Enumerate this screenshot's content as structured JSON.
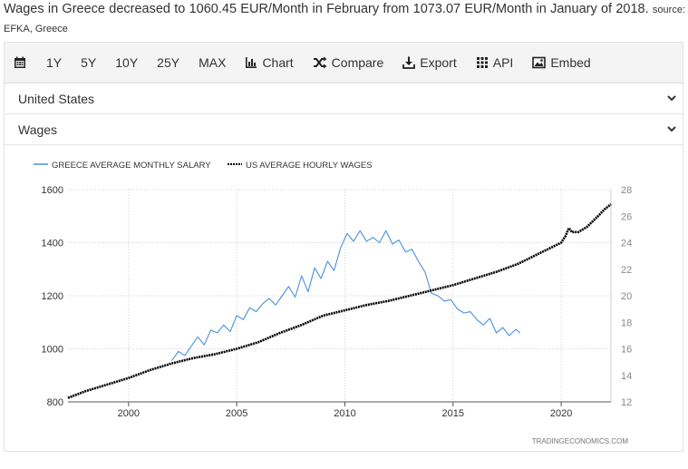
{
  "headline": {
    "text": "Wages in Greece decreased to 1060.45 EUR/Month in February from 1073.07 EUR/Month in January of 2018.",
    "source_prefix": "source:",
    "source_name": "EFKA, Greece"
  },
  "toolbar": {
    "items": [
      {
        "label": "",
        "icon": "calendar-icon"
      },
      {
        "label": "1Y"
      },
      {
        "label": "5Y"
      },
      {
        "label": "10Y"
      },
      {
        "label": "25Y"
      },
      {
        "label": "MAX"
      },
      {
        "label": "Chart",
        "icon": "bar-chart-icon"
      },
      {
        "label": "Compare",
        "icon": "shuffle-icon"
      },
      {
        "label": "Export",
        "icon": "download-icon"
      },
      {
        "label": "API",
        "icon": "grid-icon"
      },
      {
        "label": "Embed",
        "icon": "image-icon"
      }
    ]
  },
  "selectors": {
    "country": "United States",
    "indicator": "Wages"
  },
  "watermark": "TRADINGECONOMICS.COM",
  "chart_data": {
    "type": "line",
    "grid": true,
    "legend_placement": "top-left",
    "x_ticks": [
      2000,
      2005,
      2010,
      2015,
      2020
    ],
    "xlim": [
      1997.2,
      2022.3
    ],
    "y_left": {
      "ticks": [
        800,
        1000,
        1200,
        1400,
        1600
      ],
      "lim": [
        800,
        1600
      ]
    },
    "y_right": {
      "ticks": [
        12,
        14,
        16,
        18,
        20,
        22,
        24,
        26,
        28
      ],
      "lim": [
        12,
        28
      ]
    },
    "series": [
      {
        "name": "GREECE AVERAGE MONTHLY SALARY",
        "axis": "left",
        "color": "#4a90d9",
        "style": "solid",
        "x": [
          2002.0,
          2002.3,
          2002.6,
          2002.9,
          2003.2,
          2003.5,
          2003.8,
          2004.1,
          2004.4,
          2004.7,
          2005.0,
          2005.3,
          2005.6,
          2005.9,
          2006.2,
          2006.5,
          2006.8,
          2007.1,
          2007.4,
          2007.7,
          2008.0,
          2008.3,
          2008.6,
          2008.9,
          2009.2,
          2009.5,
          2009.8,
          2010.1,
          2010.4,
          2010.7,
          2011.0,
          2011.3,
          2011.6,
          2011.9,
          2012.2,
          2012.5,
          2012.8,
          2013.1,
          2013.4,
          2013.7,
          2014.0,
          2014.3,
          2014.6,
          2014.9,
          2015.2,
          2015.5,
          2015.8,
          2016.1,
          2016.4,
          2016.7,
          2017.0,
          2017.3,
          2017.6,
          2017.9,
          2018.1
        ],
        "y": [
          955,
          990,
          975,
          1010,
          1045,
          1015,
          1070,
          1060,
          1090,
          1065,
          1125,
          1110,
          1155,
          1140,
          1170,
          1190,
          1165,
          1200,
          1235,
          1195,
          1275,
          1215,
          1305,
          1265,
          1330,
          1295,
          1380,
          1435,
          1405,
          1445,
          1405,
          1420,
          1400,
          1445,
          1395,
          1410,
          1365,
          1375,
          1330,
          1290,
          1210,
          1200,
          1180,
          1185,
          1150,
          1135,
          1140,
          1110,
          1090,
          1115,
          1060,
          1080,
          1050,
          1073,
          1060
        ]
      },
      {
        "name": "US AVERAGE HOURLY WAGES",
        "axis": "right",
        "color": "#000000",
        "style": "dotted",
        "x": [
          1997.2,
          1998,
          1999,
          2000,
          2001,
          2002,
          2003,
          2004,
          2005,
          2006,
          2007,
          2008,
          2009,
          2010,
          2011,
          2012,
          2013,
          2014,
          2015,
          2016,
          2017,
          2018,
          2019,
          2020.0,
          2020.2,
          2020.35,
          2020.5,
          2020.8,
          2021.2,
          2021.7,
          2022.0,
          2022.3
        ],
        "y": [
          12.3,
          12.8,
          13.3,
          13.8,
          14.4,
          14.9,
          15.3,
          15.6,
          16.0,
          16.5,
          17.2,
          17.8,
          18.5,
          18.9,
          19.3,
          19.6,
          20.0,
          20.4,
          20.8,
          21.3,
          21.8,
          22.4,
          23.2,
          24.0,
          24.5,
          25.1,
          24.8,
          24.8,
          25.2,
          26.0,
          26.5,
          26.9
        ]
      }
    ]
  }
}
